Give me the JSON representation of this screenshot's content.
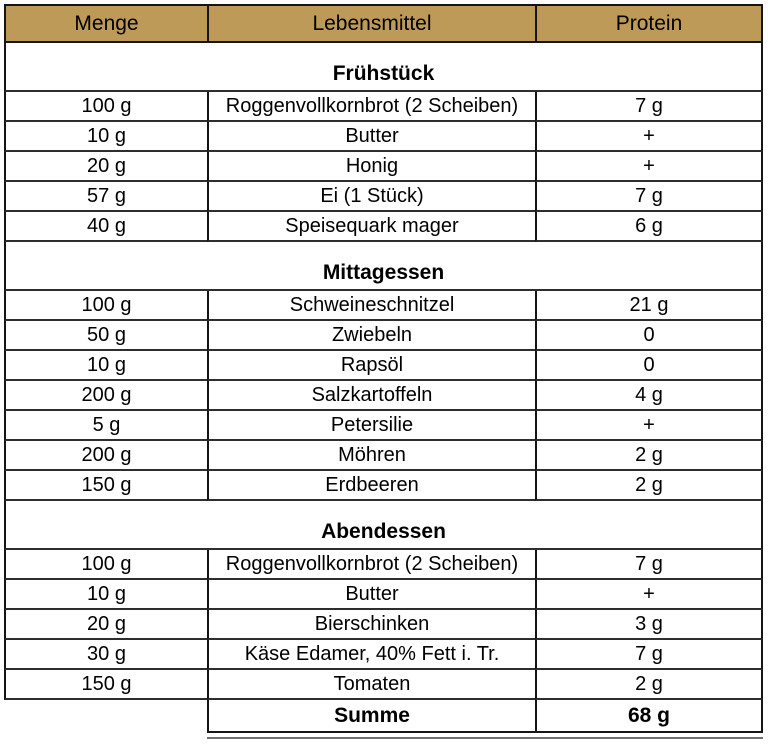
{
  "table": {
    "header_bg": "#BD9A58",
    "border_dark": "#151515",
    "border_mid": "#2e2e2e",
    "border_light": "#6f6f6f",
    "columns": [
      "Menge",
      "Lebensmittel",
      "Protein"
    ],
    "sections": [
      {
        "title": "Frühstück",
        "rows": [
          [
            "100 g",
            "Roggenvollkornbrot (2 Scheiben)",
            "7 g"
          ],
          [
            "10 g",
            "Butter",
            "+"
          ],
          [
            "20 g",
            "Honig",
            "+"
          ],
          [
            "57 g",
            "Ei (1 Stück)",
            "7 g"
          ],
          [
            "40 g",
            "Speisequark mager",
            "6 g"
          ]
        ]
      },
      {
        "title": "Mittagessen",
        "rows": [
          [
            "100 g",
            "Schweineschnitzel",
            "21 g"
          ],
          [
            "50 g",
            "Zwiebeln",
            "0"
          ],
          [
            "10 g",
            "Rapsöl",
            "0"
          ],
          [
            "200 g",
            "Salzkartoffeln",
            "4 g"
          ],
          [
            "5 g",
            "Petersilie",
            "+"
          ],
          [
            "200 g",
            "Möhren",
            "2 g"
          ],
          [
            "150 g",
            "Erdbeeren",
            "2 g"
          ]
        ]
      },
      {
        "title": "Abendessen",
        "rows": [
          [
            "100 g",
            "Roggenvollkornbrot (2 Scheiben)",
            "7 g"
          ],
          [
            "10 g",
            "Butter",
            "+"
          ],
          [
            "20 g",
            "Bierschinken",
            "3 g"
          ],
          [
            "30 g",
            "Käse Edamer, 40% Fett i. Tr.",
            "7 g"
          ],
          [
            "150 g",
            "Tomaten",
            "2 g"
          ]
        ]
      }
    ],
    "summary": {
      "label": "Summe",
      "value": "68 g"
    }
  }
}
